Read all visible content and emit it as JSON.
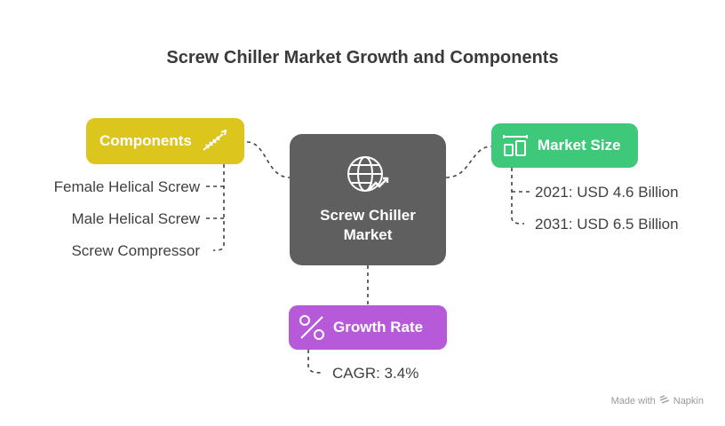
{
  "title": "Screw Chiller Market Growth and Components",
  "center": {
    "line1": "Screw Chiller",
    "line2": "Market",
    "icon": "globe-trend-icon"
  },
  "components": {
    "label": "Components",
    "icon": "screw-icon",
    "items": [
      "Female Helical Screw",
      "Male Helical Screw",
      "Screw Compressor"
    ]
  },
  "market_size": {
    "label": "Market Size",
    "icon": "dimension-icon",
    "items": [
      "2021: USD 4.6 Billion",
      "2031: USD 6.5 Billion"
    ]
  },
  "growth_rate": {
    "label": "Growth Rate",
    "icon": "percent-icon",
    "items": [
      "CAGR: 3.4%"
    ]
  },
  "footer": {
    "made_with": "Made with",
    "brand": "Napkin"
  },
  "colors": {
    "center": "#5f5f5f",
    "components": "#dcc51d",
    "market_size": "#3ec97a",
    "growth_rate": "#b65ad9"
  }
}
